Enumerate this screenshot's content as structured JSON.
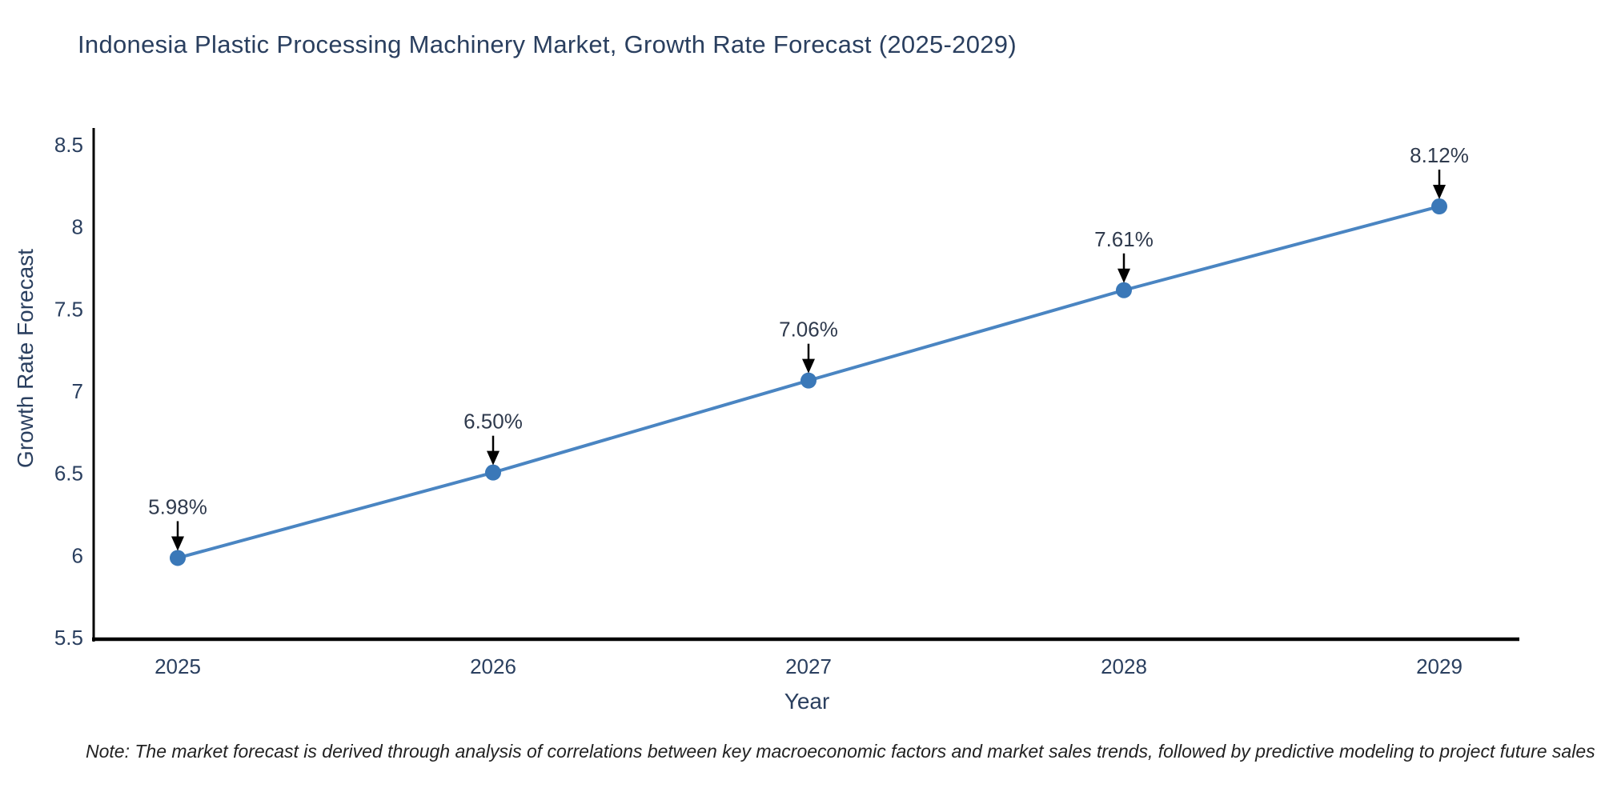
{
  "title": "Indonesia Plastic Processing Machinery Market, Growth Rate Forecast (2025-2029)",
  "note": "Note: The market forecast is derived through analysis of correlations between key macroeconomic factors and market sales trends, followed by predictive modeling to project future sales",
  "chart_data": {
    "type": "line",
    "title": "Indonesia Plastic Processing Machinery Market, Growth Rate Forecast (2025-2029)",
    "xlabel": "Year",
    "ylabel": "Growth Rate Forecast",
    "categories": [
      "2025",
      "2026",
      "2027",
      "2028",
      "2029"
    ],
    "x": [
      2025,
      2026,
      2027,
      2028,
      2029
    ],
    "values": [
      5.98,
      6.5,
      7.06,
      7.61,
      8.12
    ],
    "point_labels": [
      "5.98%",
      "6.50%",
      "7.06%",
      "7.61%",
      "8.12%"
    ],
    "ylim": [
      5.5,
      8.6
    ],
    "yticks": [
      5.5,
      6,
      6.5,
      7,
      7.5,
      8,
      8.5
    ],
    "ytick_labels": [
      "5.5",
      "6",
      "6.5",
      "7",
      "7.5",
      "8",
      "8.5"
    ],
    "grid": false,
    "legend": "none",
    "annotation_style": "downward-arrow-to-point",
    "colors": {
      "line": "#4a85c2",
      "marker": "#3a78b8",
      "axis": "#000000",
      "text": "#2a3f5f",
      "annotation_text": "#2f3a4d",
      "annotation_arrow": "#000000",
      "note_text": "#222222",
      "background": "#ffffff"
    }
  }
}
